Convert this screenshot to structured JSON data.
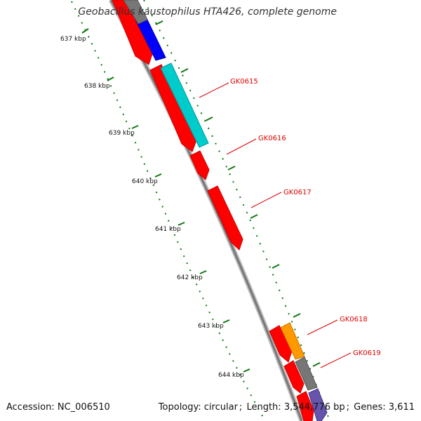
{
  "title": "Geobacillus kaustophilus HTA426, complete genome",
  "footer": {
    "accession_label": "Accession:",
    "accession": "NC_006510",
    "topology_label": "Topology:",
    "topology": "circular",
    "length_label": "Length:",
    "length": "3,544,776 bp",
    "genes_label": "Genes:",
    "genes": "3,611"
  },
  "scale": {
    "unit": "kbp",
    "ticks": [
      "637 kbp",
      "638 kbp",
      "639 kbp",
      "640 kbp",
      "641 kbp",
      "642 kbp",
      "643 kbp",
      "644 kbp"
    ]
  },
  "gene_labels": [
    "GK0615",
    "GK0616",
    "GK0617",
    "GK0618",
    "GK0619"
  ],
  "colors": {
    "red": "#ff0000",
    "blue": "#0000ff",
    "cyan": "#00cccc",
    "orange": "#ff9900",
    "gray": "#777777",
    "purple": "#6655aa",
    "scale_green": "#117711",
    "label_red": "#dd0000",
    "backbone": "#888888"
  }
}
